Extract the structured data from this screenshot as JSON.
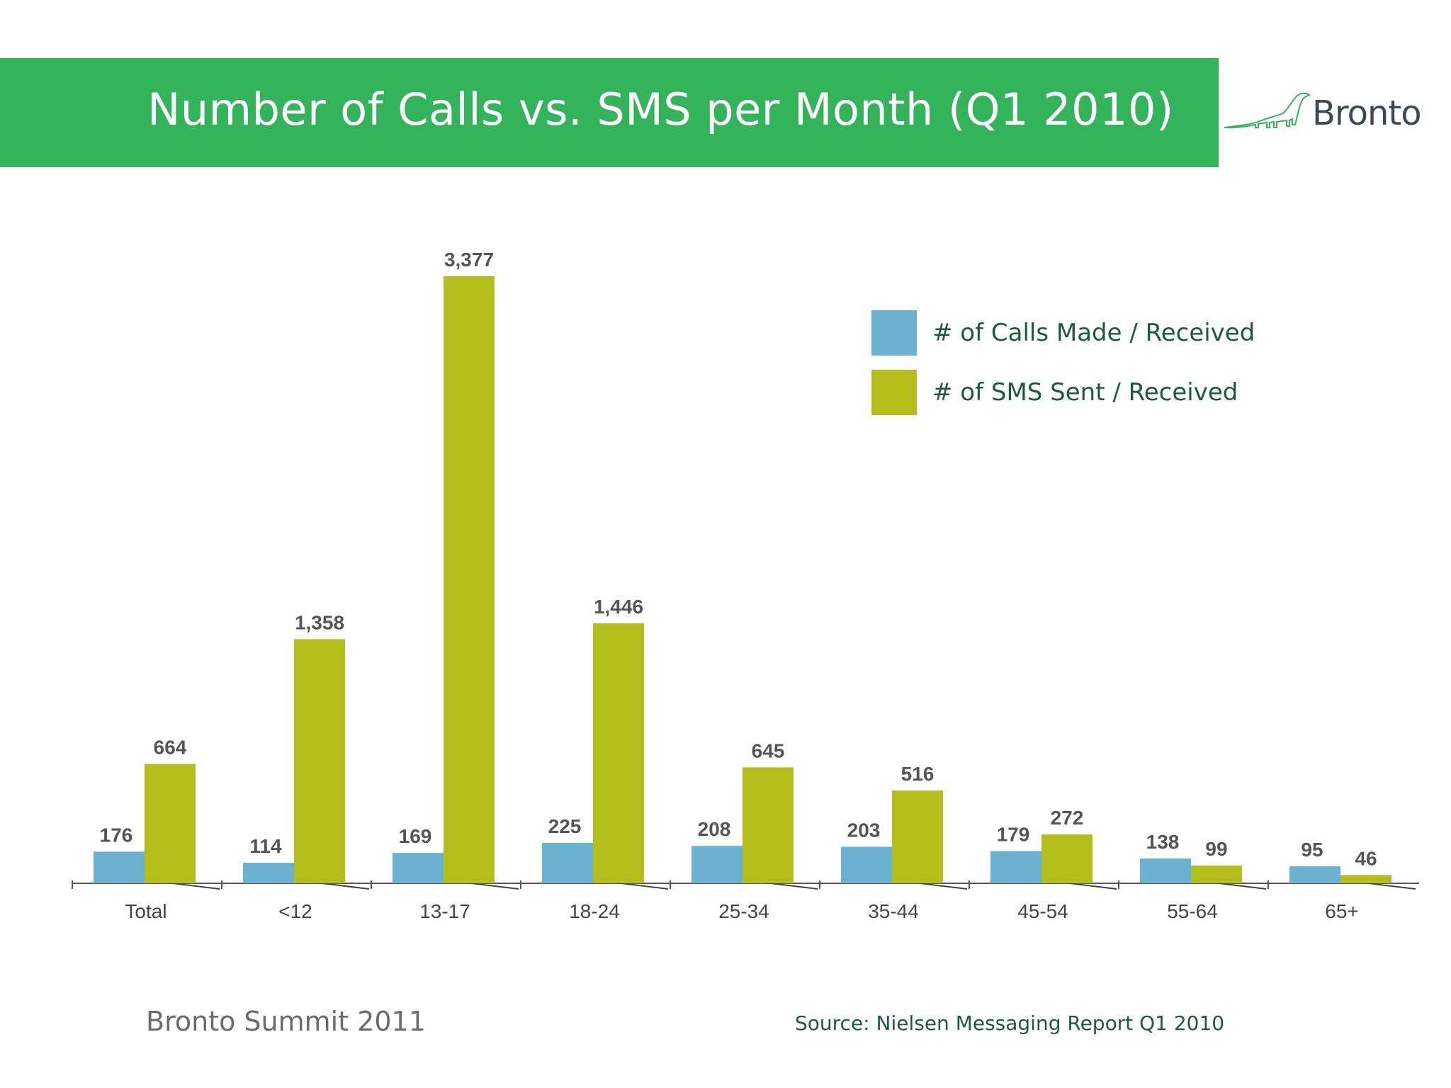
{
  "header": {
    "title": "Number of Calls vs. SMS per Month (Q1 2010)",
    "band_color": "#33b35a"
  },
  "logo": {
    "text": "Bronto",
    "icon": "brontosaurus-icon"
  },
  "footer": {
    "event": "Bronto Summit 2011",
    "source": "Source: Nielsen Messaging Report Q1 2010"
  },
  "chart_data": {
    "type": "bar",
    "categories": [
      "Total",
      "<12",
      "13-17",
      "18-24",
      "25-34",
      "35-44",
      "45-54",
      "55-64",
      "65+"
    ],
    "series": [
      {
        "name": "# of Calls Made / Received",
        "color": "#6ab2d0",
        "values": [
          176,
          114,
          169,
          225,
          208,
          203,
          179,
          138,
          95
        ],
        "labels": [
          "176",
          "114",
          "169",
          "225",
          "208",
          "203",
          "179",
          "138",
          "95"
        ]
      },
      {
        "name": "# of SMS Sent / Received",
        "color": "#b3be1c",
        "values": [
          664,
          1358,
          3377,
          1446,
          645,
          516,
          272,
          99,
          46
        ],
        "labels": [
          "664",
          "1,358",
          "3,377",
          "1,446",
          "645",
          "516",
          "272",
          "99",
          "46"
        ]
      }
    ],
    "ylim": [
      0,
      3377
    ],
    "legend": "top-right",
    "grid": false
  }
}
